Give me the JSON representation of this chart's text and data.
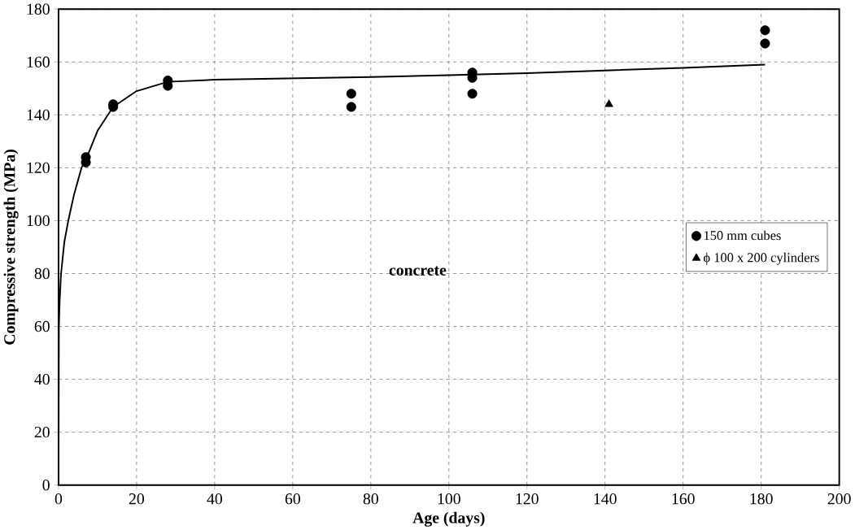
{
  "chart_data": {
    "type": "scatter",
    "xlabel": "Age (days)",
    "ylabel": "Compressive strength (MPa)",
    "annotations": [
      "concrete"
    ],
    "xlim": [
      0,
      200
    ],
    "ylim": [
      0,
      180
    ],
    "xticks": [
      0,
      20,
      40,
      60,
      80,
      100,
      120,
      140,
      160,
      180,
      200
    ],
    "yticks": [
      0,
      20,
      40,
      60,
      80,
      100,
      120,
      140,
      160,
      180
    ],
    "grid": true,
    "legend": "right",
    "series": [
      {
        "name": "150 mm cubes",
        "marker": "circle",
        "color": "#000000",
        "x": [
          7,
          7,
          14,
          14,
          28,
          28,
          75,
          75,
          106,
          106,
          106,
          181,
          181
        ],
        "values": [
          124,
          122,
          144,
          143,
          153,
          151,
          148,
          143,
          156,
          154,
          148,
          172,
          167
        ]
      },
      {
        "name": "ϕ 100 x 200 cylinders",
        "marker": "triangle",
        "color": "#000000",
        "x": [
          141
        ],
        "values": [
          144
        ]
      },
      {
        "type": "line",
        "marker": "none",
        "line_style": "solid",
        "color": "#000000",
        "x": [
          0,
          0.1,
          0.3,
          0.65,
          1.5,
          2.5,
          4,
          5.9,
          7,
          10,
          14,
          20,
          28,
          40,
          60,
          80,
          100,
          120,
          140,
          160,
          181
        ],
        "values": [
          0,
          60,
          70,
          80,
          92,
          100,
          110,
          120,
          123,
          134,
          143,
          149,
          152.5,
          153.3,
          153.8,
          154.3,
          155,
          155.8,
          156.8,
          157.8,
          159
        ]
      }
    ]
  }
}
